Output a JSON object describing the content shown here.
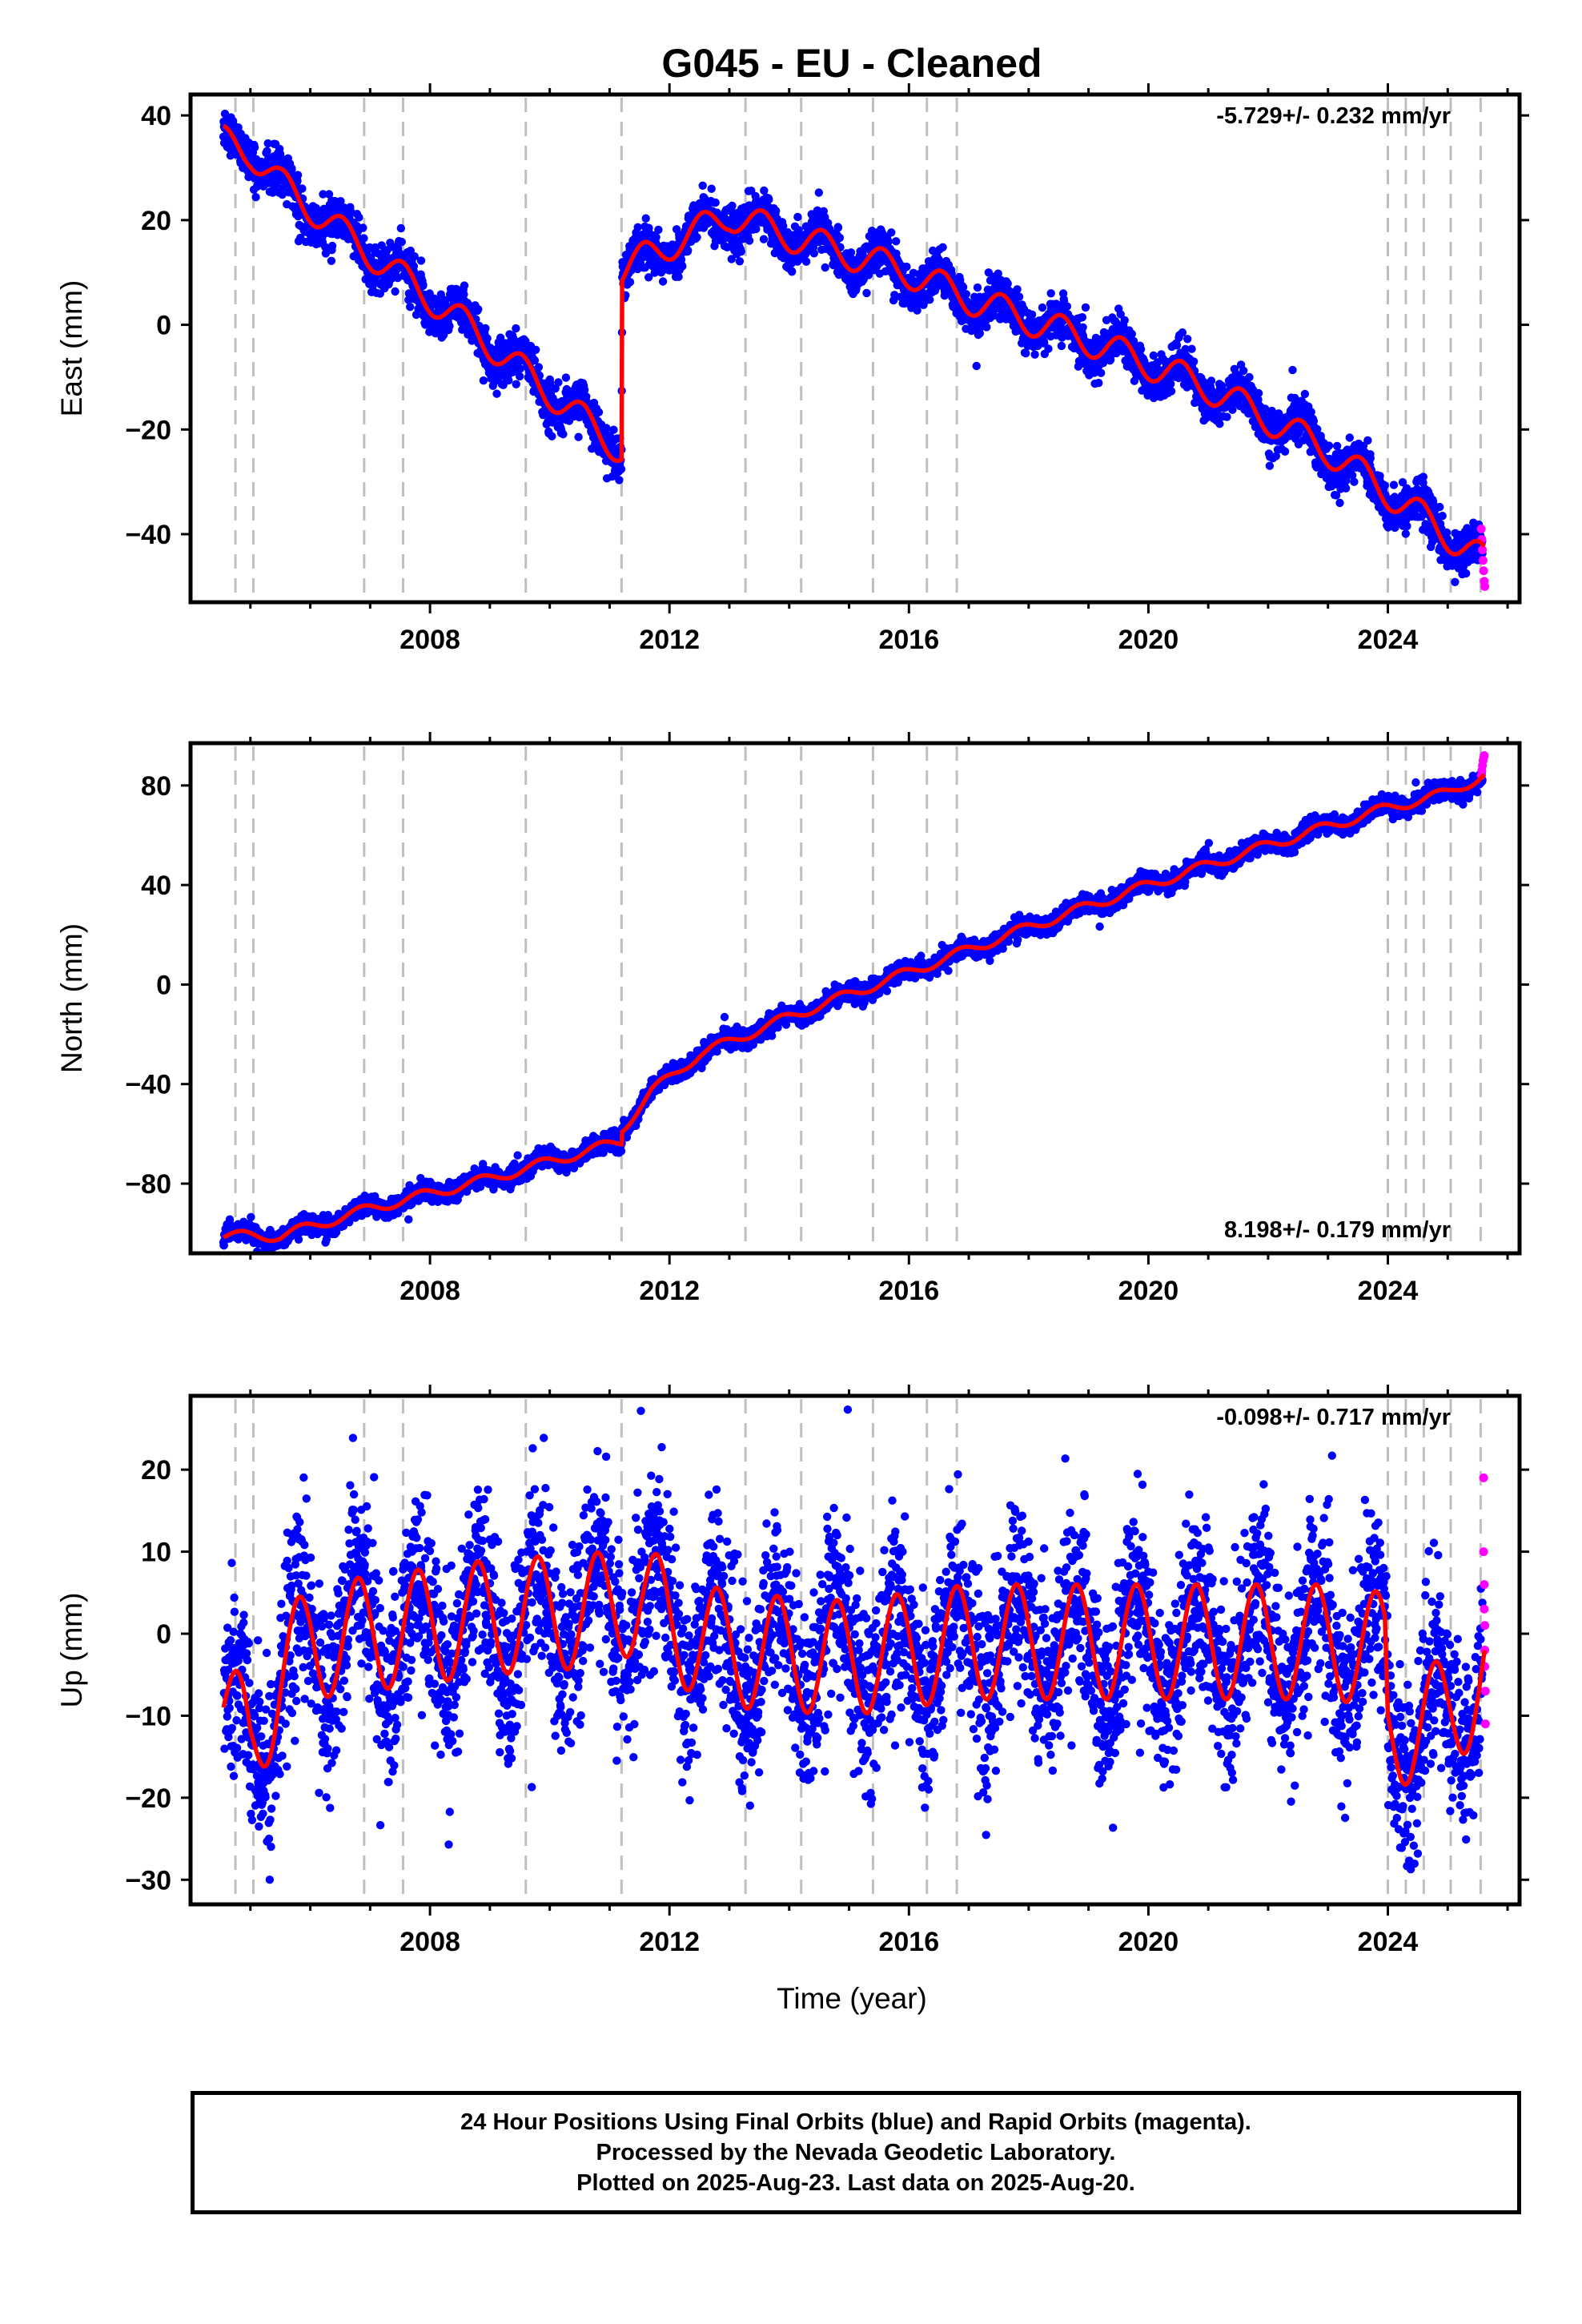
{
  "title": "G045  - EU - Cleaned",
  "xlabel": "Time (year)",
  "footer": {
    "line1": "24 Hour Positions Using Final Orbits (blue) and Rapid Orbits (magenta).",
    "line2": "Processed by the Nevada Geodetic Laboratory.",
    "line3": "Plotted on 2025-Aug-23. Last data on 2025-Aug-20."
  },
  "colors": {
    "final": "#0000ff",
    "rapid": "#ff00ff",
    "model": "#ff0000",
    "equipment_lines": "#bfbfbf"
  },
  "chart_data": [
    {
      "type": "scatter",
      "component": "East",
      "ylabel": "East (mm)",
      "rate_label": "-5.729+/- 0.232 mm/yr",
      "xlim": [
        2004.0,
        2026.2
      ],
      "ylim": [
        -53,
        44
      ],
      "yticks": [
        -40,
        -20,
        0,
        20,
        40
      ],
      "xticks": [
        2008,
        2012,
        2016,
        2020,
        2024
      ],
      "model_series": {
        "name": "model",
        "knots": [
          [
            2004.55,
            35
          ],
          [
            2005.0,
            33
          ],
          [
            2005.5,
            27
          ],
          [
            2006.6,
            17
          ],
          [
            2008.6,
            0
          ],
          [
            2010.0,
            -13
          ],
          [
            2011.2,
            -24
          ],
          [
            2011.21,
            10
          ],
          [
            2011.6,
            13
          ],
          [
            2013.0,
            21
          ],
          [
            2014.0,
            17
          ],
          [
            2016.0,
            10
          ],
          [
            2017.0,
            5
          ],
          [
            2019.0,
            -3
          ],
          [
            2021.0,
            -12
          ],
          [
            2023.0,
            -24
          ],
          [
            2025.6,
            -45
          ]
        ],
        "amplitude": 3.0,
        "phase": 0.3
      },
      "scatter_noise_mm": 2.0,
      "rapid_points": [
        [
          2025.56,
          -39
        ],
        [
          2025.57,
          -41
        ],
        [
          2025.58,
          -43
        ],
        [
          2025.59,
          -45
        ],
        [
          2025.6,
          -47
        ],
        [
          2025.61,
          -49
        ],
        [
          2025.62,
          -50
        ]
      ]
    },
    {
      "type": "scatter",
      "component": "North",
      "ylabel": "North (mm)",
      "rate_label": "8.198+/- 0.179 mm/yr",
      "xlim": [
        2004.0,
        2026.2
      ],
      "ylim": [
        -108,
        97
      ],
      "yticks": [
        -80,
        -40,
        0,
        40,
        80
      ],
      "xticks": [
        2008,
        2012,
        2016,
        2020,
        2024
      ],
      "model_series": {
        "name": "model",
        "knots": [
          [
            2004.55,
            -101
          ],
          [
            2005.5,
            -101
          ],
          [
            2007.0,
            -90
          ],
          [
            2009.0,
            -78
          ],
          [
            2011.2,
            -63
          ],
          [
            2011.21,
            -58
          ],
          [
            2011.7,
            -43
          ],
          [
            2012.5,
            -28
          ],
          [
            2014.0,
            -13
          ],
          [
            2016.0,
            5
          ],
          [
            2018.0,
            23
          ],
          [
            2020.0,
            40
          ],
          [
            2022.0,
            56
          ],
          [
            2024.0,
            71
          ],
          [
            2025.0,
            77
          ],
          [
            2025.6,
            84
          ]
        ],
        "amplitude": 2.0,
        "phase": 0.6
      },
      "scatter_noise_mm": 1.8,
      "rapid_points": [
        [
          2025.56,
          84
        ],
        [
          2025.57,
          86
        ],
        [
          2025.58,
          88
        ],
        [
          2025.59,
          90
        ],
        [
          2025.6,
          91
        ],
        [
          2025.61,
          92
        ]
      ]
    },
    {
      "type": "scatter",
      "component": "Up",
      "ylabel": "Up (mm)",
      "rate_label": "-0.098+/- 0.717 mm/yr",
      "xlim": [
        2004.0,
        2026.2
      ],
      "ylim": [
        -33,
        29
      ],
      "yticks": [
        -30,
        -20,
        -10,
        0,
        10,
        20
      ],
      "xticks": [
        2008,
        2012,
        2016,
        2020,
        2024
      ],
      "model_series": {
        "name": "model",
        "knots": [
          [
            2004.55,
            -9
          ],
          [
            2005.0,
            -14
          ],
          [
            2005.5,
            -5
          ],
          [
            2006.0,
            -1
          ],
          [
            2007.0,
            0
          ],
          [
            2009.0,
            2
          ],
          [
            2011.0,
            3
          ],
          [
            2011.5,
            5
          ],
          [
            2012.0,
            1
          ],
          [
            2013.0,
            -2
          ],
          [
            2015.0,
            -3
          ],
          [
            2017.0,
            -1
          ],
          [
            2019.0,
            -1
          ],
          [
            2021.0,
            -1
          ],
          [
            2023.0,
            -1
          ],
          [
            2023.95,
            -2
          ],
          [
            2024.0,
            -12
          ],
          [
            2025.0,
            -10
          ],
          [
            2025.6,
            -5
          ]
        ],
        "amplitude": 7.0,
        "phase": 0.55
      },
      "scatter_noise_mm": 5.5,
      "rapid_points": [
        [
          2025.6,
          19
        ],
        [
          2025.6,
          10
        ],
        [
          2025.61,
          6
        ],
        [
          2025.61,
          3
        ],
        [
          2025.62,
          1
        ],
        [
          2025.62,
          -2
        ],
        [
          2025.62,
          -4
        ],
        [
          2025.63,
          -7
        ],
        [
          2025.63,
          -11
        ]
      ]
    }
  ],
  "equipment_change_years": [
    2004.75,
    2005.05,
    2006.9,
    2007.55,
    2009.6,
    2011.2,
    2013.27,
    2014.2,
    2015.4,
    2016.3,
    2016.8,
    2024.0,
    2024.3,
    2024.6,
    2025.05,
    2025.55
  ]
}
